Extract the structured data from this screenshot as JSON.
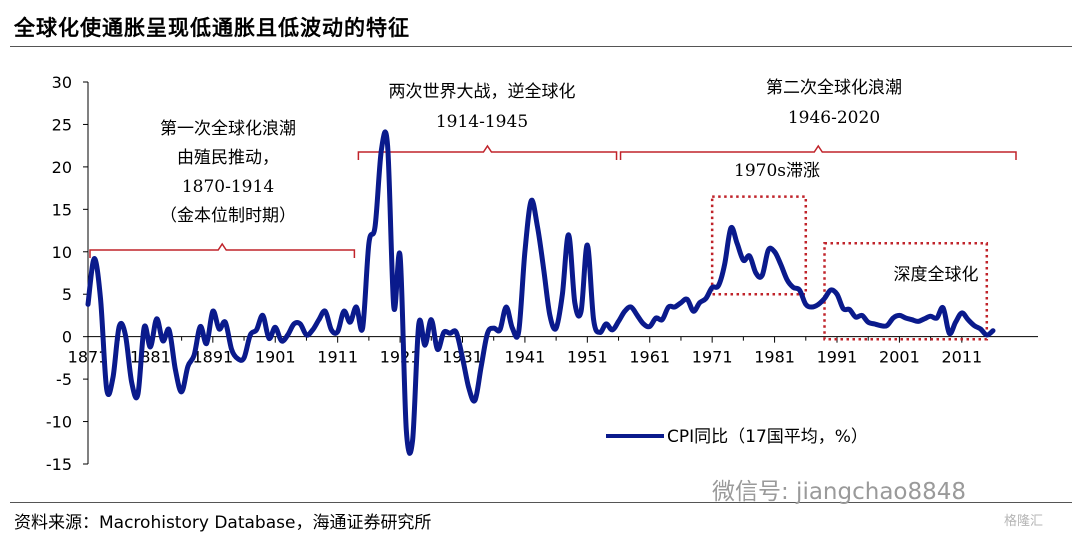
{
  "title": "全球化使通胀呈现低通胀且低波动的特征",
  "source": "资料来源：Macrohistory Database，海通证券研究所",
  "watermark": "微信号: jiangchao8848",
  "logo": "格隆汇",
  "colors": {
    "series": "#0a1a8c",
    "annotation": "#c0232a",
    "axis": "#000000"
  },
  "chart_data": {
    "type": "line",
    "xlim": [
      1871,
      2020
    ],
    "ylim": [
      -15,
      30
    ],
    "yticks": [
      30,
      25,
      20,
      15,
      10,
      5,
      0,
      -5,
      -10,
      -15
    ],
    "xticks": [
      "1871",
      "1881",
      "1891",
      "1901",
      "1911",
      "1921",
      "1931",
      "1941",
      "1951",
      "1961",
      "1971",
      "1981",
      "1991",
      "2001",
      "2011"
    ],
    "legend": {
      "label": "CPI同比（17国平均，%）",
      "position": "lower-right"
    },
    "series": [
      {
        "name": "CPI同比（17国平均，%）",
        "x": [
          1871,
          1872,
          1873,
          1874,
          1875,
          1876,
          1877,
          1878,
          1879,
          1880,
          1881,
          1882,
          1883,
          1884,
          1885,
          1886,
          1887,
          1888,
          1889,
          1890,
          1891,
          1892,
          1893,
          1894,
          1895,
          1896,
          1897,
          1898,
          1899,
          1900,
          1901,
          1902,
          1903,
          1904,
          1905,
          1906,
          1907,
          1908,
          1909,
          1910,
          1911,
          1912,
          1913,
          1914,
          1915,
          1916,
          1917,
          1918,
          1919,
          1920,
          1921,
          1922,
          1923,
          1924,
          1925,
          1926,
          1927,
          1928,
          1929,
          1930,
          1931,
          1932,
          1933,
          1934,
          1935,
          1936,
          1937,
          1938,
          1939,
          1940,
          1941,
          1942,
          1943,
          1944,
          1945,
          1946,
          1947,
          1948,
          1949,
          1950,
          1951,
          1952,
          1953,
          1954,
          1955,
          1956,
          1957,
          1958,
          1959,
          1960,
          1961,
          1962,
          1963,
          1964,
          1965,
          1966,
          1967,
          1968,
          1969,
          1970,
          1971,
          1972,
          1973,
          1974,
          1975,
          1976,
          1977,
          1978,
          1979,
          1980,
          1981,
          1982,
          1983,
          1984,
          1985,
          1986,
          1987,
          1988,
          1989,
          1990,
          1991,
          1992,
          1993,
          1994,
          1995,
          1996,
          1997,
          1998,
          1999,
          2000,
          2001,
          2002,
          2003,
          2004,
          2005,
          2006,
          2007,
          2008,
          2009,
          2010,
          2011,
          2012,
          2013,
          2014,
          2015,
          2016
        ],
        "values": [
          3.8,
          9.2,
          4.5,
          -6.2,
          -4.8,
          1.2,
          0.2,
          -5.4,
          -6.8,
          1.1,
          -1.2,
          2.1,
          -0.5,
          0.8,
          -3.9,
          -6.5,
          -3.5,
          -2.2,
          1.2,
          -0.8,
          3.0,
          0.9,
          1.7,
          -1.5,
          -2.6,
          -2.5,
          0.2,
          0.8,
          2.5,
          -0.2,
          1.1,
          -0.5,
          0.2,
          1.5,
          1.5,
          0.2,
          0.8,
          2.0,
          3.0,
          0.8,
          0.6,
          3.0,
          1.7,
          3.5,
          1.0,
          11.0,
          13.0,
          22.0,
          22.5,
          3.5,
          9.5,
          -11.0,
          -12.2,
          1.5,
          -1.0,
          2.0,
          -1.5,
          0.5,
          0.4,
          0.5,
          -2.5,
          -6.0,
          -7.5,
          -3.5,
          0.4,
          1.0,
          0.8,
          3.5,
          1.0,
          0.6,
          10.0,
          16.0,
          13.0,
          8.0,
          2.5,
          1.0,
          5.0,
          12.0,
          4.0,
          3.0,
          10.8,
          2.0,
          0.5,
          1.5,
          0.8,
          1.8,
          3.0,
          3.5,
          2.5,
          1.5,
          1.2,
          2.2,
          2.0,
          3.5,
          3.5,
          4.0,
          4.4,
          3.0,
          4.0,
          4.5,
          5.8,
          6.0,
          8.5,
          12.8,
          11.0,
          9.0,
          9.5,
          7.5,
          7.2,
          10.2,
          10.0,
          8.5,
          6.7,
          5.8,
          5.5,
          3.8,
          3.5,
          3.8,
          4.5,
          5.5,
          5.0,
          3.3,
          3.2,
          2.3,
          2.5,
          1.7,
          1.5,
          1.3,
          1.3,
          2.2,
          2.5,
          2.2,
          2.0,
          1.8,
          2.1,
          2.4,
          2.2,
          3.4,
          0.4,
          1.7,
          2.8,
          2.0,
          1.3,
          0.9,
          0.2,
          0.7
        ]
      }
    ],
    "annotations": [
      {
        "label": "第一次全球化浪潮",
        "sub": [
          "由殖民推动，",
          "1870-1914",
          "（金本位制时期）"
        ],
        "span": [
          1871,
          1914
        ]
      },
      {
        "label": "两次世界大战，逆全球化",
        "sub": [
          "1914-1945"
        ],
        "span": [
          1914,
          1956
        ]
      },
      {
        "label": "第二次全球化浪潮",
        "sub": [
          "1946-2020"
        ],
        "span": [
          1956,
          2020
        ]
      },
      {
        "label": "1970s滞涨",
        "box": {
          "x": [
            1971,
            1986
          ],
          "y": [
            5,
            16.5
          ]
        }
      },
      {
        "label": "深度全球化",
        "box": {
          "x": [
            1989,
            2015
          ],
          "y": [
            -0.3,
            11
          ]
        }
      }
    ]
  }
}
